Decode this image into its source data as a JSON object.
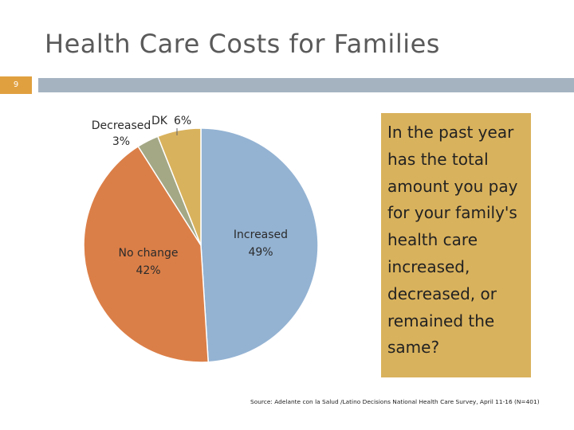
{
  "slide": {
    "title": "Health Care Costs for Families",
    "number": "9"
  },
  "colors": {
    "accent": "#e1a03f",
    "header_bar": "#a5b3c1",
    "question_box": "#d9b25d"
  },
  "question": "In the past year has the total amount you pay for your family's health care increased, decreased, or remained the same?",
  "source": "Source: Adelante con la Salud /Latino Decisions National Health Care Survey, April 11-16 (N=401)",
  "chart_data": {
    "type": "pie",
    "title": "",
    "slices": [
      {
        "name": "Increased",
        "value": 49,
        "label": "49%",
        "color": "#94b3d3"
      },
      {
        "name": "No change",
        "value": 42,
        "label": "42%",
        "color": "#db7f48"
      },
      {
        "name": "Decreased",
        "value": 3,
        "label": "3%",
        "color": "#a4a885"
      },
      {
        "name": "DK",
        "value": 6,
        "label": "6%",
        "color": "#d9b25d"
      }
    ]
  }
}
